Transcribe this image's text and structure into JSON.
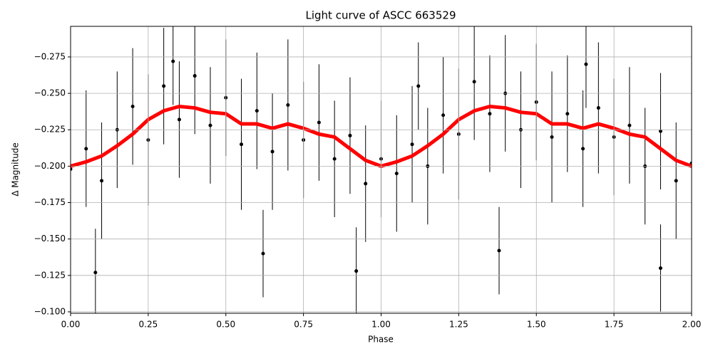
{
  "chart_data": {
    "type": "scatter",
    "title": "Light curve of ASCC 663529",
    "x_label": "Phase",
    "y_label": "Δ Magnitude",
    "xlim": [
      0,
      2
    ],
    "ylim": [
      -0.099,
      -0.296
    ],
    "xticks": [
      {
        "value": 0,
        "label": "0.00"
      },
      {
        "value": 0.25,
        "label": "0.25"
      },
      {
        "value": 0.5,
        "label": "0.50"
      },
      {
        "value": 0.75,
        "label": "0.75"
      },
      {
        "value": 1,
        "label": "1.00"
      },
      {
        "value": 1.25,
        "label": "1.25"
      },
      {
        "value": 1.5,
        "label": "1.50"
      },
      {
        "value": 1.75,
        "label": "1.75"
      },
      {
        "value": 2,
        "label": "2.00"
      }
    ],
    "yticks": [
      {
        "value": -0.1,
        "label": "−0.100"
      },
      {
        "value": -0.125,
        "label": "−0.125"
      },
      {
        "value": -0.15,
        "label": "−0.150"
      },
      {
        "value": -0.175,
        "label": "−0.175"
      },
      {
        "value": -0.2,
        "label": "−0.200"
      },
      {
        "value": -0.225,
        "label": "−0.225"
      },
      {
        "value": -0.25,
        "label": "−0.250"
      },
      {
        "value": -0.275,
        "label": "−0.275"
      }
    ],
    "grid": true,
    "series": [
      {
        "color": "#000000",
        "kind": "errorbar",
        "x": [
          0,
          0.05,
          0.1,
          0.15,
          0.2,
          0.25,
          0.3,
          0.35,
          0.4,
          0.45,
          0.5,
          0.55,
          0.6,
          0.65,
          0.7,
          0.75,
          0.8,
          0.85,
          0.9,
          0.95,
          1.0,
          1.05,
          1.1,
          1.15,
          1.2,
          1.25,
          1.3,
          1.35,
          1.4,
          1.45,
          1.5,
          1.55,
          1.6,
          1.65,
          1.7,
          1.75,
          1.8,
          1.85,
          1.9,
          1.95,
          2.0,
          0.08,
          0.33,
          0.62,
          0.92,
          1.12,
          1.38,
          1.66,
          1.9
        ],
        "values": [
          -0.198,
          -0.212,
          -0.19,
          -0.225,
          -0.241,
          -0.218,
          -0.255,
          -0.232,
          -0.262,
          -0.228,
          -0.247,
          -0.215,
          -0.238,
          -0.21,
          -0.242,
          -0.218,
          -0.23,
          -0.205,
          -0.221,
          -0.188,
          -0.205,
          -0.195,
          -0.215,
          -0.2,
          -0.235,
          -0.222,
          -0.258,
          -0.236,
          -0.25,
          -0.225,
          -0.244,
          -0.22,
          -0.236,
          -0.212,
          -0.24,
          -0.22,
          -0.228,
          -0.2,
          -0.224,
          -0.19,
          -0.202,
          -0.127,
          -0.272,
          -0.14,
          -0.128,
          -0.255,
          -0.142,
          -0.27,
          -0.13
        ],
        "errors": [
          0.035,
          0.04,
          0.04,
          0.04,
          0.04,
          0.045,
          0.04,
          0.04,
          0.04,
          0.04,
          0.04,
          0.045,
          0.04,
          0.04,
          0.045,
          0.04,
          0.04,
          0.04,
          0.04,
          0.04,
          0.04,
          0.04,
          0.04,
          0.04,
          0.04,
          0.045,
          0.04,
          0.04,
          0.04,
          0.04,
          0.04,
          0.045,
          0.04,
          0.04,
          0.045,
          0.04,
          0.04,
          0.04,
          0.04,
          0.04,
          0.035,
          0.03,
          0.03,
          0.03,
          0.03,
          0.03,
          0.03,
          0.03,
          0.03
        ]
      },
      {
        "color": "#ff0000",
        "kind": "line",
        "x": [
          0,
          0.05,
          0.1,
          0.15,
          0.2,
          0.25,
          0.3,
          0.35,
          0.4,
          0.45,
          0.5,
          0.55,
          0.6,
          0.65,
          0.7,
          0.75,
          0.8,
          0.85,
          0.9,
          0.95,
          1.0,
          1.05,
          1.1,
          1.15,
          1.2,
          1.25,
          1.3,
          1.35,
          1.4,
          1.45,
          1.5,
          1.55,
          1.6,
          1.65,
          1.7,
          1.75,
          1.8,
          1.85,
          1.9,
          1.95,
          2.0
        ],
        "values": [
          -0.2,
          -0.203,
          -0.207,
          -0.214,
          -0.222,
          -0.232,
          -0.238,
          -0.241,
          -0.24,
          -0.237,
          -0.236,
          -0.229,
          -0.229,
          -0.226,
          -0.229,
          -0.226,
          -0.222,
          -0.22,
          -0.212,
          -0.204,
          -0.2,
          -0.203,
          -0.207,
          -0.214,
          -0.222,
          -0.232,
          -0.238,
          -0.241,
          -0.24,
          -0.237,
          -0.236,
          -0.229,
          -0.229,
          -0.226,
          -0.229,
          -0.226,
          -0.222,
          -0.22,
          -0.212,
          -0.204,
          -0.2
        ]
      }
    ]
  }
}
